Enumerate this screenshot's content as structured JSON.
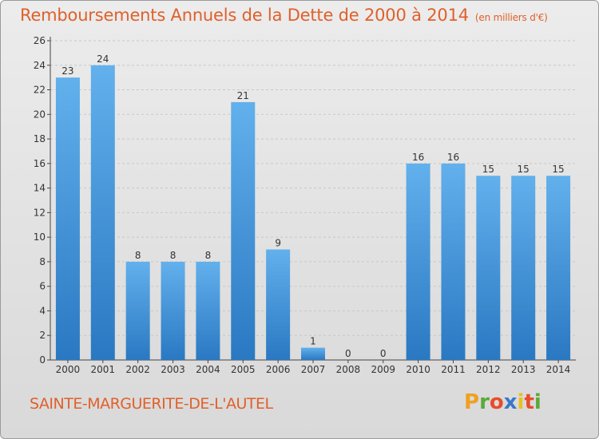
{
  "title": "Remboursements Annuels de la Dette de 2000 à 2014",
  "subtitle": "(en milliers d'€)",
  "commune": "SAINTE-MARGUERITE-DE-L'AUTEL",
  "logo": {
    "letters": [
      "P",
      "r",
      "o",
      "x",
      "i",
      "t",
      "i"
    ],
    "colors": [
      "#f0a020",
      "#5aaa3a",
      "#e84c2a",
      "#3a78c8",
      "#e8c020",
      "#e84c2a",
      "#5aaa3a"
    ]
  },
  "colors": {
    "bar_light": "#62b0ec",
    "bar_dark": "#2a78c2",
    "grid": "#c8c8c8",
    "text_accent": "#e0602a"
  },
  "chart_data": {
    "type": "bar",
    "categories": [
      "2000",
      "2001",
      "2002",
      "2003",
      "2004",
      "2005",
      "2006",
      "2007",
      "2008",
      "2009",
      "2010",
      "2011",
      "2012",
      "2013",
      "2014"
    ],
    "values": [
      23,
      24,
      8,
      8,
      8,
      21,
      9,
      1,
      0,
      0,
      16,
      16,
      15,
      15,
      15
    ],
    "yticks": [
      0,
      2,
      4,
      6,
      8,
      10,
      12,
      14,
      16,
      18,
      20,
      22,
      24,
      26
    ],
    "ylim": [
      0,
      26
    ],
    "grid": "horizontal dashed",
    "legend": "none"
  }
}
